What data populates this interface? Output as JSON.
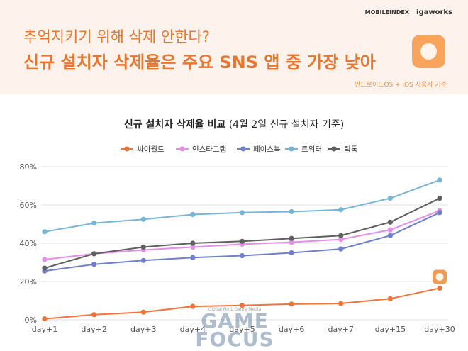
{
  "header": {
    "brand_mobileindex": "MOBILEINDEX",
    "brand_igaworks": "igaworks",
    "headline_1": "추억지키기 위해 삭제 안한다?",
    "headline_2": "신규 설치자 삭제율은 주요 SNS 앱 중 가장 낮아",
    "note": "안드로이드OS + iOS 사용자 기준"
  },
  "chart_title": {
    "bold": "신규 설치자 삭제율 비교",
    "normal": "(4월 2일 신규 설치자 기준)"
  },
  "watermark": {
    "line1": "Global No.1 Game Media",
    "line2": "GAME FOCUS"
  },
  "chart_data": {
    "type": "line",
    "title": "신규 설치자 삭제율 비교 (4월 2일 신규 설치자 기준)",
    "categories": [
      "day+1",
      "day+2",
      "day+3",
      "day+4",
      "day+5",
      "day+6",
      "day+7",
      "day+15",
      "day+30"
    ],
    "ylim": [
      0,
      80
    ],
    "yticks": [
      "0%",
      "20%",
      "40%",
      "60%",
      "80%"
    ],
    "grid": true,
    "legend": "top-center",
    "series": [
      {
        "name": "싸이월드",
        "color": "#f0743a",
        "values": [
          0.5,
          2.7,
          4.0,
          7.0,
          7.5,
          8.2,
          8.5,
          11.0,
          16.5
        ]
      },
      {
        "name": "인스타그램",
        "color": "#e48ee8",
        "values": [
          31.5,
          34.5,
          36.5,
          38.0,
          39.5,
          40.5,
          42.0,
          47.0,
          57.0
        ]
      },
      {
        "name": "페이스북",
        "color": "#6f7fd0",
        "values": [
          25.5,
          29.0,
          31.0,
          32.5,
          33.5,
          35.0,
          37.0,
          44.0,
          56.0
        ]
      },
      {
        "name": "트위터",
        "color": "#77b4d8",
        "values": [
          46.0,
          50.5,
          52.5,
          55.0,
          56.0,
          56.5,
          57.5,
          63.5,
          73.0
        ]
      },
      {
        "name": "틱톡",
        "color": "#5f5f5f",
        "values": [
          27.0,
          34.5,
          38.0,
          40.0,
          41.0,
          42.5,
          44.0,
          51.0,
          63.5
        ]
      }
    ]
  }
}
